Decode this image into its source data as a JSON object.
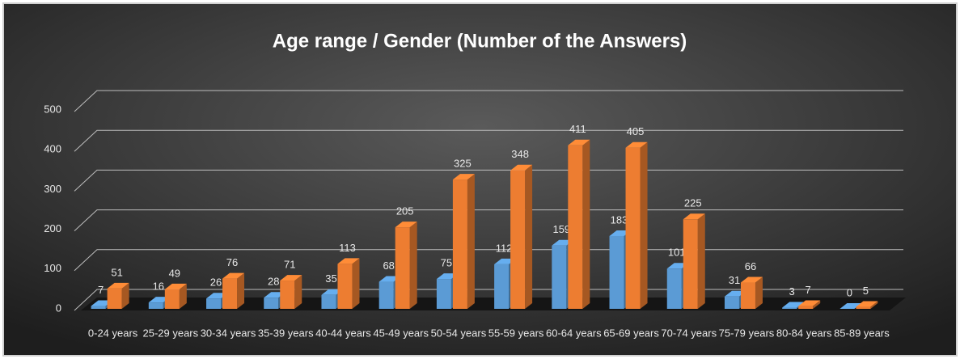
{
  "chart_data": {
    "type": "bar3d",
    "title": "Age range / Gender (Number of the Answers)",
    "categories": [
      "0-24 years",
      "25-29 years",
      "30-34 years",
      "35-39 years",
      "40-44 years",
      "45-49 years",
      "50-54 years",
      "55-59 years",
      "60-64 years",
      "65-69 years",
      "70-74 years",
      "75-79 years",
      "80-84 years",
      "85-89 years"
    ],
    "series": [
      {
        "color": "#5b9bd5",
        "values": [
          7,
          16,
          26,
          28,
          35,
          68,
          75,
          112,
          159,
          183,
          101,
          31,
          3,
          0
        ]
      },
      {
        "color": "#ed7d31",
        "values": [
          51,
          49,
          76,
          71,
          113,
          205,
          325,
          348,
          411,
          405,
          225,
          66,
          7,
          5
        ]
      }
    ],
    "ylim": [
      0,
      500
    ],
    "yticks": [
      0,
      100,
      200,
      300,
      400,
      500
    ],
    "grid": true
  }
}
